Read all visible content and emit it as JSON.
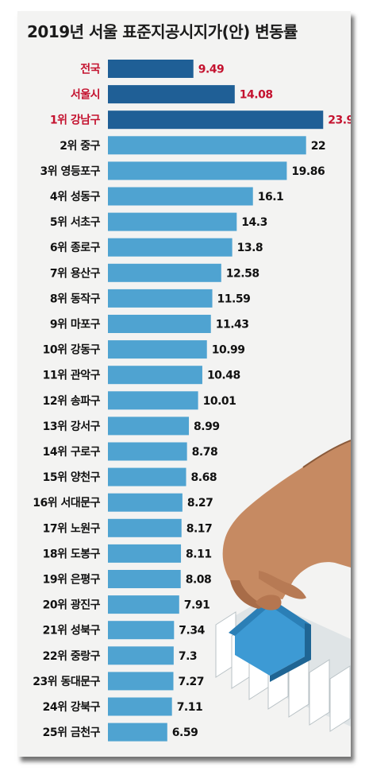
{
  "title": "2019년 서울 표준지공시지가(안) 변동률",
  "colors": {
    "highlight_bar": "#1f5f96",
    "normal_bar": "#4fa3d1",
    "highlight_text": "#c4122f"
  },
  "chart_data": {
    "type": "bar",
    "orientation": "horizontal",
    "title": "2019년 서울 표준지공시지가(안) 변동률",
    "categories": [
      "전국",
      "서울시",
      "1위 강남구",
      "2위 중구",
      "3위 영등포구",
      "4위 성동구",
      "5위 서초구",
      "6위 종로구",
      "7위 용산구",
      "8위 동작구",
      "9위 마포구",
      "10위 강동구",
      "11위 관악구",
      "12위 송파구",
      "13위 강서구",
      "14위 구로구",
      "15위 양천구",
      "16위 서대문구",
      "17위 노원구",
      "18위 도봉구",
      "19위 은평구",
      "20위 광진구",
      "21위 성북구",
      "22위 중랑구",
      "23위 동대문구",
      "24위 강북구",
      "25위 금천구"
    ],
    "value_labels": [
      "9.49",
      "14.08",
      "23.9",
      "22",
      "19.86",
      "16.1",
      "14.3",
      "13.8",
      "12.58",
      "11.59",
      "11.43",
      "10.99",
      "10.48",
      "10.01",
      "8.99",
      "8.78",
      "8.68",
      "8.27",
      "8.17",
      "8.11",
      "8.08",
      "7.91",
      "7.34",
      "7.3",
      "7.27",
      "7.11",
      "6.59"
    ],
    "values": [
      9.49,
      14.08,
      23.9,
      22,
      19.86,
      16.1,
      14.3,
      13.8,
      12.58,
      11.59,
      11.43,
      10.99,
      10.48,
      10.01,
      8.99,
      8.78,
      8.68,
      8.27,
      8.17,
      8.11,
      8.08,
      7.91,
      7.34,
      7.3,
      7.27,
      7.11,
      6.59
    ],
    "highlighted": [
      true,
      true,
      true,
      false,
      false,
      false,
      false,
      false,
      false,
      false,
      false,
      false,
      false,
      false,
      false,
      false,
      false,
      false,
      false,
      false,
      false,
      false,
      false,
      false,
      false,
      false,
      false
    ],
    "xlabel": "",
    "ylabel": ""
  }
}
